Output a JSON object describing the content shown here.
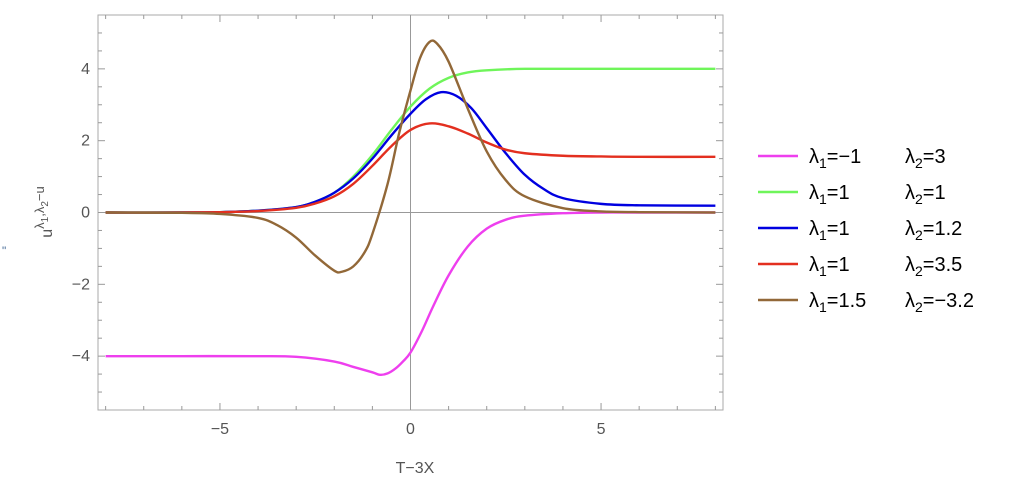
{
  "chart_data": {
    "type": "line",
    "xlabel": "T−3X",
    "ylabel": {
      "base": "u",
      "sup": "λ",
      "sub1": "1",
      "sub_sep": ",λ",
      "sub2": "2",
      "suffix": "−u"
    },
    "stray_mark": "\"",
    "xlim": [
      -8.2,
      8.2
    ],
    "ylim": [
      -5.5,
      5.5
    ],
    "x_ticks": [
      -5,
      0,
      5
    ],
    "x_tick_labels": [
      "−5",
      "0",
      "5"
    ],
    "y_ticks": [
      -4,
      -2,
      0,
      2,
      4
    ],
    "y_tick_labels": [
      "−4",
      "−2",
      "0",
      "2",
      "4"
    ],
    "grid": false,
    "legend_position": "right",
    "series": [
      {
        "name": "λ1=−1 λ2=3",
        "l1": "−1",
        "l2": "3",
        "color": "#ee3fee",
        "points": [
          [
            -8,
            -4
          ],
          [
            -6,
            -4
          ],
          [
            -4,
            -4
          ],
          [
            -3,
            -4.02
          ],
          [
            -2,
            -4.15
          ],
          [
            -1.5,
            -4.3
          ],
          [
            -1,
            -4.45
          ],
          [
            -0.8,
            -4.52
          ],
          [
            -0.6,
            -4.48
          ],
          [
            -0.4,
            -4.35
          ],
          [
            -0.2,
            -4.15
          ],
          [
            0,
            -3.9
          ],
          [
            0.3,
            -3.3
          ],
          [
            0.6,
            -2.6
          ],
          [
            1,
            -1.75
          ],
          [
            1.5,
            -0.95
          ],
          [
            2,
            -0.45
          ],
          [
            2.5,
            -0.2
          ],
          [
            3,
            -0.09
          ],
          [
            4,
            -0.02
          ],
          [
            5,
            0
          ],
          [
            6,
            0
          ],
          [
            8,
            0
          ]
        ]
      },
      {
        "name": "λ1=1 λ2=1",
        "l1": "1",
        "l2": "1",
        "color": "#6ff55a",
        "points": [
          [
            -8,
            0
          ],
          [
            -6,
            0
          ],
          [
            -5,
            0.01
          ],
          [
            -4,
            0.05
          ],
          [
            -3,
            0.15
          ],
          [
            -2.5,
            0.3
          ],
          [
            -2,
            0.55
          ],
          [
            -1.5,
            1
          ],
          [
            -1,
            1.6
          ],
          [
            -0.5,
            2.3
          ],
          [
            0,
            2.95
          ],
          [
            0.5,
            3.45
          ],
          [
            1,
            3.75
          ],
          [
            1.5,
            3.9
          ],
          [
            2,
            3.96
          ],
          [
            3,
            4
          ],
          [
            5,
            4
          ],
          [
            8,
            4
          ]
        ]
      },
      {
        "name": "λ1=1 λ2=1.2",
        "l1": "1",
        "l2": "1.2",
        "color": "#0000e0",
        "points": [
          [
            -8,
            0
          ],
          [
            -6,
            0
          ],
          [
            -5,
            0.01
          ],
          [
            -4,
            0.05
          ],
          [
            -3,
            0.15
          ],
          [
            -2.5,
            0.3
          ],
          [
            -2,
            0.55
          ],
          [
            -1.5,
            0.95
          ],
          [
            -1,
            1.5
          ],
          [
            -0.5,
            2.15
          ],
          [
            0,
            2.75
          ],
          [
            0.4,
            3.15
          ],
          [
            0.8,
            3.35
          ],
          [
            1.2,
            3.25
          ],
          [
            1.6,
            2.9
          ],
          [
            2,
            2.35
          ],
          [
            2.5,
            1.65
          ],
          [
            3,
            1.05
          ],
          [
            3.5,
            0.65
          ],
          [
            4,
            0.4
          ],
          [
            5,
            0.24
          ],
          [
            6,
            0.2
          ],
          [
            8,
            0.19
          ]
        ]
      },
      {
        "name": "λ1=1 λ2=3.5",
        "l1": "1",
        "l2": "3.5",
        "color": "#e32f1f",
        "points": [
          [
            -8,
            0
          ],
          [
            -6,
            0
          ],
          [
            -5,
            0.01
          ],
          [
            -4,
            0.04
          ],
          [
            -3,
            0.13
          ],
          [
            -2.5,
            0.25
          ],
          [
            -2,
            0.45
          ],
          [
            -1.5,
            0.8
          ],
          [
            -1,
            1.3
          ],
          [
            -0.5,
            1.85
          ],
          [
            0,
            2.3
          ],
          [
            0.5,
            2.48
          ],
          [
            1,
            2.4
          ],
          [
            1.5,
            2.2
          ],
          [
            2,
            1.95
          ],
          [
            2.5,
            1.75
          ],
          [
            3,
            1.65
          ],
          [
            4,
            1.58
          ],
          [
            5,
            1.56
          ],
          [
            6,
            1.55
          ],
          [
            8,
            1.55
          ]
        ]
      },
      {
        "name": "λ1=1.5 λ2=−3.2",
        "l1": "1.5",
        "l2": "−3.2",
        "color": "#926838",
        "points": [
          [
            -8,
            0
          ],
          [
            -6,
            -0.01
          ],
          [
            -5,
            -0.04
          ],
          [
            -4,
            -0.15
          ],
          [
            -3.5,
            -0.35
          ],
          [
            -3,
            -0.7
          ],
          [
            -2.5,
            -1.2
          ],
          [
            -2,
            -1.62
          ],
          [
            -1.8,
            -1.65
          ],
          [
            -1.5,
            -1.5
          ],
          [
            -1.2,
            -1.1
          ],
          [
            -1,
            -0.6
          ],
          [
            -0.6,
            0.8
          ],
          [
            -0.3,
            2.2
          ],
          [
            0,
            3.4
          ],
          [
            0.25,
            4.3
          ],
          [
            0.5,
            4.75
          ],
          [
            0.7,
            4.7
          ],
          [
            1,
            4.2
          ],
          [
            1.5,
            2.9
          ],
          [
            2,
            1.7
          ],
          [
            2.5,
            0.9
          ],
          [
            3,
            0.45
          ],
          [
            4,
            0.12
          ],
          [
            5,
            0.03
          ],
          [
            6,
            0.01
          ],
          [
            8,
            0
          ]
        ]
      }
    ]
  }
}
